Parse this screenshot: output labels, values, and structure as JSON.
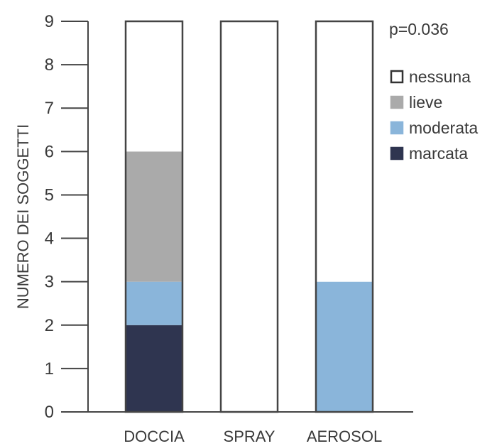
{
  "chart_data": {
    "type": "bar",
    "stacked": true,
    "categories": [
      "DOCCIA",
      "SPRAY",
      "AEROSOL"
    ],
    "series": [
      {
        "name": "marcata",
        "color": "#2f3550",
        "values": [
          2,
          0,
          0
        ]
      },
      {
        "name": "moderata",
        "color": "#8ab5da",
        "values": [
          1,
          0,
          3
        ]
      },
      {
        "name": "lieve",
        "color": "#aaaaaa",
        "values": [
          3,
          0,
          0
        ]
      },
      {
        "name": "nessuna",
        "color": "#ffffff",
        "values": [
          3,
          9,
          6
        ]
      }
    ],
    "ylabel": "NUMERO DEI SOGGETTI",
    "xlabel": "",
    "ylim": [
      0,
      9
    ],
    "yticks": [
      0,
      1,
      2,
      3,
      4,
      5,
      6,
      7,
      8,
      9
    ],
    "annotation": "p=0.036",
    "legend_order": [
      "nessuna",
      "lieve",
      "moderata",
      "marcata"
    ],
    "legend_position": "right",
    "grid": false
  }
}
